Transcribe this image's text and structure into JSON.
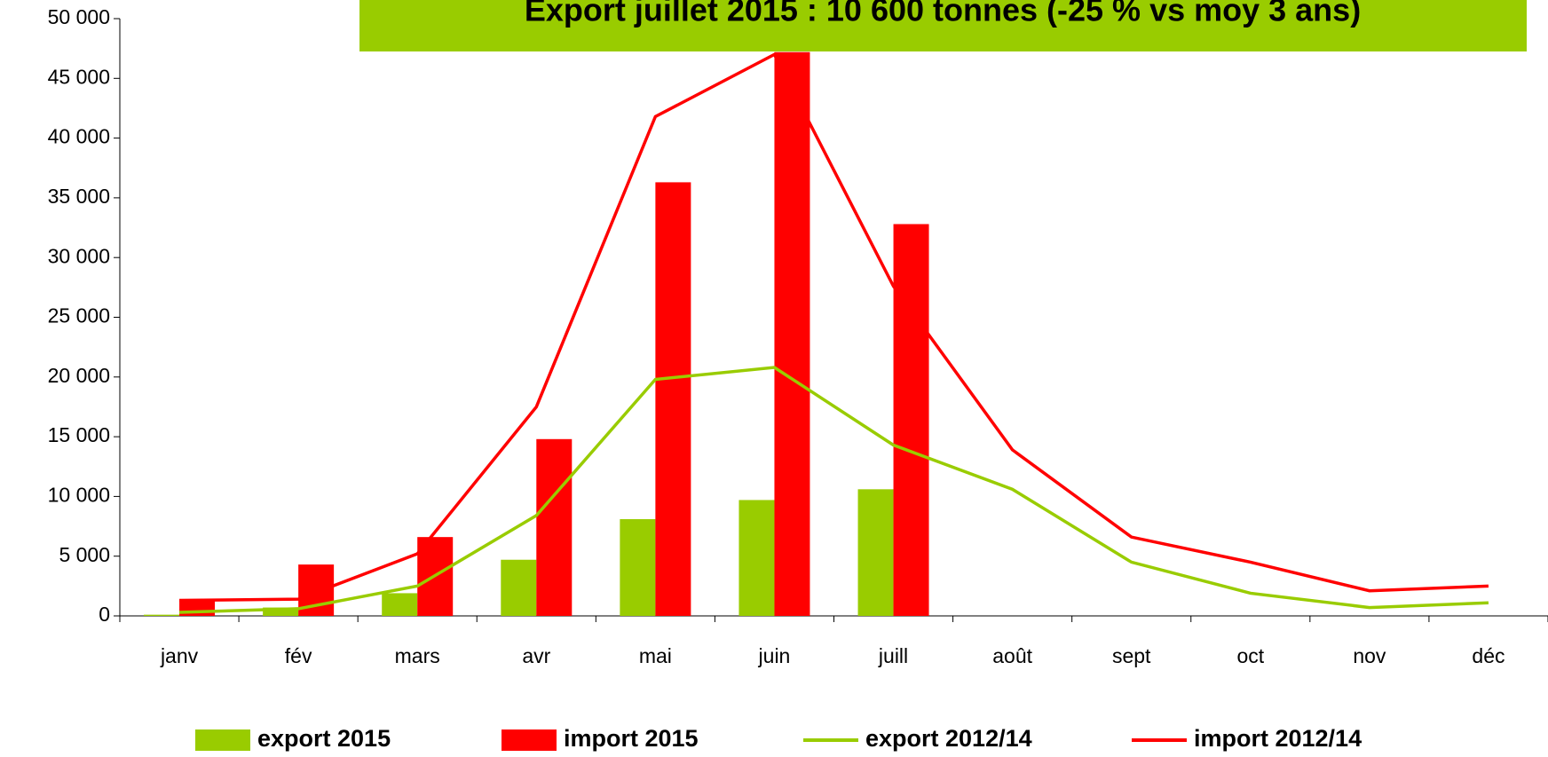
{
  "chart_data": {
    "type": "bar",
    "title": "Export juillet 2015 : 10 600 tonnes (-25 % vs moy 3 ans)",
    "categories": [
      "janv",
      "fév",
      "mars",
      "avr",
      "mai",
      "juin",
      "juill",
      "août",
      "sept",
      "oct",
      "nov",
      "déc"
    ],
    "series": [
      {
        "name": "export 2015",
        "type": "bar",
        "color": "#99cc00",
        "values": [
          100,
          700,
          1900,
          4700,
          8100,
          9700,
          10600,
          null,
          null,
          null,
          null,
          null
        ]
      },
      {
        "name": "import 2015",
        "type": "bar",
        "color": "#ff0000",
        "values": [
          1300,
          4300,
          6600,
          14800,
          36300,
          47200,
          32800,
          null,
          null,
          null,
          null,
          null
        ]
      },
      {
        "name": "export 2012/14",
        "type": "line",
        "color": "#99cc00",
        "values": [
          300,
          600,
          2500,
          8400,
          19800,
          20800,
          14300,
          10600,
          4500,
          1900,
          700,
          1100
        ]
      },
      {
        "name": "import 2012/14",
        "type": "line",
        "color": "#ff0000",
        "values": [
          1300,
          1400,
          5200,
          17500,
          41800,
          47000,
          27600,
          13900,
          6600,
          4500,
          2100,
          2500
        ]
      }
    ],
    "ylim": [
      0,
      50000
    ],
    "yticks": [
      0,
      {
        "value": 5000,
        "label": "5 000"
      },
      {
        "value": 10000,
        "label": "10 000"
      },
      {
        "value": 15000,
        "label": "15 000"
      },
      {
        "value": 20000,
        "label": "20 000"
      },
      {
        "value": 25000,
        "label": "25 000"
      },
      {
        "value": 30000,
        "label": "30 000"
      },
      {
        "value": 35000,
        "label": "35 000"
      },
      {
        "value": 40000,
        "label": "40 000"
      },
      {
        "value": 45000,
        "label": "45 000"
      },
      {
        "value": 50000,
        "label": "50 000"
      }
    ],
    "legend": "bottom"
  }
}
